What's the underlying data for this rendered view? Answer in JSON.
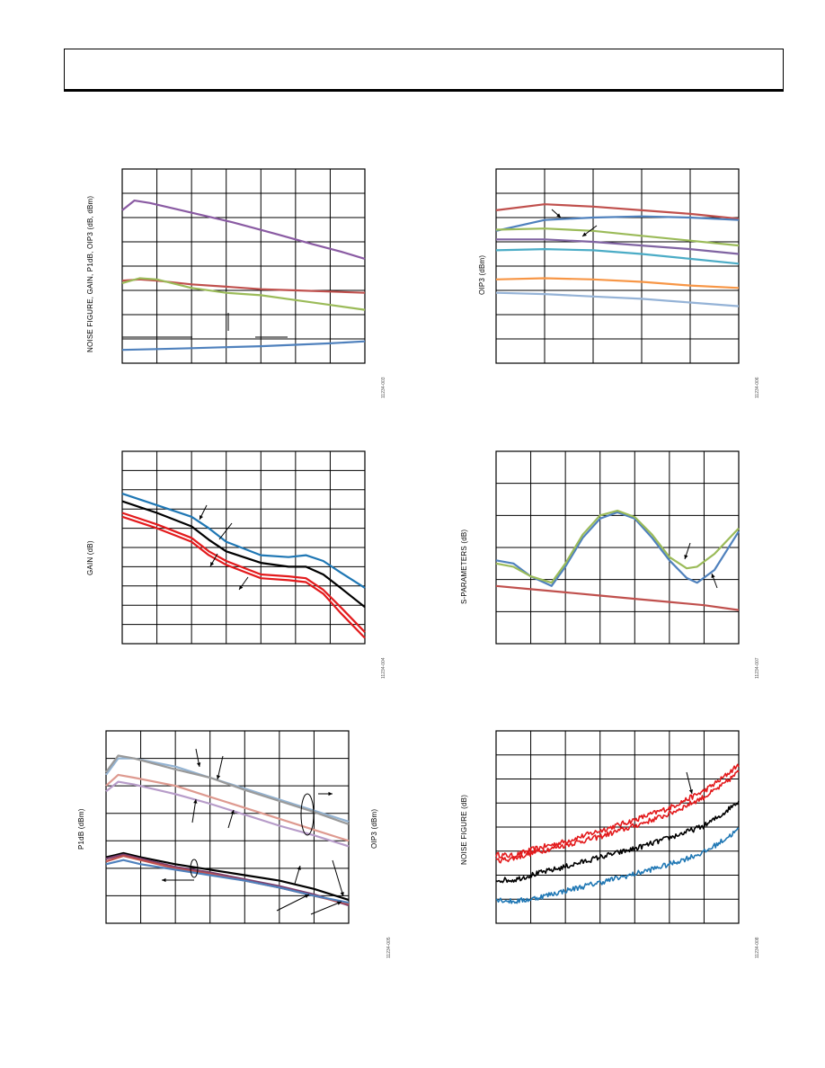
{
  "page": {
    "header_text": ""
  },
  "chart_data": [
    {
      "id": "fig3",
      "type": "line",
      "ylabel": "NOISE FIGURE, GAIN, P1dB, OIP3 (dB, dBm)",
      "figure_id": "11234-003",
      "xlim": [
        0,
        7
      ],
      "ylim": [
        0,
        8
      ],
      "grid": true,
      "series": [
        {
          "color": "#8a5ba3",
          "x": [
            0,
            0.35,
            0.8,
            2,
            3.2,
            4.5,
            5.5,
            6.3,
            7
          ],
          "y": [
            6.3,
            6.7,
            6.6,
            6.2,
            5.8,
            5.3,
            4.9,
            4.6,
            4.3
          ]
        },
        {
          "color": "#c0504d",
          "x": [
            0,
            0.5,
            1,
            2,
            3,
            4,
            5,
            6,
            7
          ],
          "y": [
            3.4,
            3.45,
            3.4,
            3.25,
            3.15,
            3.05,
            3.0,
            2.95,
            2.9
          ]
        },
        {
          "color": "#9bbb59",
          "x": [
            0,
            0.5,
            1,
            2,
            3,
            4,
            5,
            6,
            7
          ],
          "y": [
            3.3,
            3.5,
            3.45,
            3.1,
            2.9,
            2.8,
            2.6,
            2.4,
            2.2
          ]
        },
        {
          "color": "#4f81bd",
          "x": [
            0,
            1,
            2,
            3,
            4,
            5,
            6,
            7
          ],
          "y": [
            0.55,
            0.58,
            0.62,
            0.66,
            0.7,
            0.76,
            0.82,
            0.9
          ]
        }
      ]
    },
    {
      "id": "fig6",
      "type": "line",
      "ylabel": "OIP3 (dBm)",
      "figure_id": "11234-006",
      "xlim": [
        0,
        5
      ],
      "ylim": [
        0,
        8
      ],
      "grid": true,
      "series": [
        {
          "color": "#c0504d",
          "x": [
            0,
            1,
            2,
            3,
            4,
            5
          ],
          "y": [
            6.3,
            6.55,
            6.45,
            6.3,
            6.15,
            5.95
          ]
        },
        {
          "color": "#4f81bd",
          "x": [
            0,
            1,
            2,
            3,
            4,
            5
          ],
          "y": [
            5.45,
            5.9,
            6.0,
            6.05,
            6.0,
            5.9
          ]
        },
        {
          "color": "#9bbb59",
          "x": [
            0,
            1,
            2,
            3,
            4,
            5
          ],
          "y": [
            5.5,
            5.55,
            5.45,
            5.25,
            5.05,
            4.85
          ]
        },
        {
          "color": "#8064a2",
          "x": [
            0,
            1,
            2,
            3,
            4,
            5
          ],
          "y": [
            5.1,
            5.1,
            5.0,
            4.85,
            4.7,
            4.5
          ]
        },
        {
          "color": "#4bacc6",
          "x": [
            0,
            1,
            2,
            3,
            4,
            5
          ],
          "y": [
            4.65,
            4.7,
            4.65,
            4.5,
            4.3,
            4.1
          ]
        },
        {
          "color": "#f79646",
          "x": [
            0,
            1,
            2,
            3,
            4,
            5
          ],
          "y": [
            3.45,
            3.5,
            3.45,
            3.35,
            3.2,
            3.1
          ]
        },
        {
          "color": "#95b3d7",
          "x": [
            0,
            1,
            2,
            3,
            4,
            5
          ],
          "y": [
            2.9,
            2.85,
            2.75,
            2.65,
            2.5,
            2.35
          ]
        }
      ]
    },
    {
      "id": "fig4",
      "type": "line",
      "ylabel": "GAIN (dB)",
      "figure_id": "11234-004",
      "xlim": [
        0,
        7
      ],
      "ylim": [
        0,
        10
      ],
      "grid": true,
      "series": [
        {
          "color": "#1f77b4",
          "x": [
            0,
            1,
            2,
            2.5,
            3,
            4,
            4.8,
            5.3,
            5.8,
            6.3,
            7
          ],
          "y": [
            7.8,
            7.2,
            6.6,
            6.0,
            5.3,
            4.6,
            4.5,
            4.6,
            4.3,
            3.7,
            2.9
          ]
        },
        {
          "color": "#000000",
          "x": [
            0,
            1,
            2,
            2.5,
            3,
            4,
            4.8,
            5.3,
            5.8,
            6.3,
            7
          ],
          "y": [
            7.4,
            6.8,
            6.1,
            5.4,
            4.8,
            4.2,
            4.0,
            4.0,
            3.6,
            2.9,
            1.9
          ]
        },
        {
          "color": "#e31a1c",
          "x": [
            0,
            1,
            2,
            2.5,
            3,
            4,
            4.8,
            5.3,
            5.8,
            6.3,
            7
          ],
          "y": [
            6.8,
            6.2,
            5.5,
            4.8,
            4.3,
            3.6,
            3.5,
            3.4,
            2.8,
            1.9,
            0.6
          ]
        },
        {
          "color": "#e31a1c",
          "x": [
            0,
            1,
            2,
            2.5,
            3,
            4,
            4.8,
            5.3,
            5.8,
            6.3,
            7
          ],
          "y": [
            6.6,
            6.0,
            5.3,
            4.6,
            4.1,
            3.4,
            3.3,
            3.2,
            2.6,
            1.6,
            0.3
          ]
        }
      ]
    },
    {
      "id": "fig7",
      "type": "line",
      "ylabel": "S-PARAMETERS (dB)",
      "figure_id": "11234-007",
      "xlim": [
        0,
        7
      ],
      "ylim": [
        0,
        6
      ],
      "grid": true,
      "series": [
        {
          "color": "#4f81bd",
          "x": [
            0,
            0.5,
            1.0,
            1.6,
            2.0,
            2.5,
            3.0,
            3.5,
            4.0,
            4.5,
            5.0,
            5.5,
            5.8,
            6.3,
            7
          ],
          "y": [
            2.6,
            2.5,
            2.1,
            1.8,
            2.4,
            3.3,
            3.9,
            4.1,
            3.9,
            3.3,
            2.6,
            2.05,
            1.9,
            2.3,
            3.5
          ]
        },
        {
          "color": "#9bbb59",
          "x": [
            0,
            0.5,
            1.0,
            1.6,
            2.0,
            2.5,
            3.0,
            3.5,
            4.0,
            4.5,
            5.0,
            5.5,
            5.8,
            6.3,
            7
          ],
          "y": [
            2.5,
            2.4,
            2.1,
            1.9,
            2.5,
            3.4,
            4.0,
            4.15,
            3.95,
            3.4,
            2.7,
            2.35,
            2.4,
            2.8,
            3.6
          ]
        },
        {
          "color": "#c0504d",
          "x": [
            0,
            1,
            2,
            3,
            4,
            5,
            6,
            7
          ],
          "y": [
            1.8,
            1.7,
            1.6,
            1.5,
            1.4,
            1.3,
            1.2,
            1.05
          ]
        }
      ]
    },
    {
      "id": "fig5",
      "type": "line",
      "ylabel_left": "P1dB (dBm)",
      "ylabel_right": "OIP3 (dBm)",
      "figure_id": "11234-005",
      "xlim": [
        0,
        7
      ],
      "ylim": [
        0,
        7
      ],
      "grid": true,
      "series": [
        {
          "color": "#93b3d2",
          "x": [
            0,
            0.35,
            0.8,
            2,
            3,
            4,
            5,
            6,
            7
          ],
          "y": [
            5.4,
            6.0,
            6.0,
            5.7,
            5.3,
            4.9,
            4.5,
            4.1,
            3.7
          ]
        },
        {
          "color": "#9a9a9a",
          "x": [
            0,
            0.35,
            0.8,
            2,
            3,
            4,
            5,
            6,
            7
          ],
          "y": [
            5.5,
            6.1,
            6.0,
            5.6,
            5.3,
            4.85,
            4.45,
            4.05,
            3.6
          ]
        },
        {
          "color": "#de9a90",
          "x": [
            0,
            0.35,
            0.8,
            2,
            3,
            4,
            5,
            6,
            7
          ],
          "y": [
            5.0,
            5.4,
            5.3,
            5.0,
            4.6,
            4.2,
            3.8,
            3.4,
            3.0
          ]
        },
        {
          "color": "#b79cc9",
          "x": [
            0,
            0.35,
            0.8,
            2,
            3,
            4,
            5,
            6,
            7
          ],
          "y": [
            4.8,
            5.15,
            5.05,
            4.7,
            4.35,
            3.95,
            3.55,
            3.2,
            2.8
          ]
        },
        {
          "color": "#000000",
          "x": [
            0,
            0.5,
            1,
            2,
            3,
            4,
            5,
            6,
            7
          ],
          "y": [
            2.4,
            2.55,
            2.4,
            2.15,
            1.95,
            1.75,
            1.55,
            1.25,
            0.85
          ]
        },
        {
          "color": "#7b3f6e",
          "x": [
            0,
            0.5,
            1,
            2,
            3,
            4,
            5,
            6,
            7
          ],
          "y": [
            2.35,
            2.5,
            2.35,
            2.05,
            1.85,
            1.6,
            1.35,
            1.05,
            0.65
          ]
        },
        {
          "color": "#c0504d",
          "x": [
            0,
            0.5,
            1,
            2,
            3,
            4,
            5,
            6,
            7
          ],
          "y": [
            2.25,
            2.45,
            2.3,
            2.0,
            1.8,
            1.55,
            1.3,
            1.0,
            0.7
          ]
        },
        {
          "color": "#4f81bd",
          "x": [
            0,
            0.5,
            1,
            2,
            3,
            4,
            5,
            6,
            7
          ],
          "y": [
            2.15,
            2.3,
            2.15,
            1.95,
            1.75,
            1.55,
            1.3,
            1.0,
            0.75
          ]
        }
      ]
    },
    {
      "id": "fig8",
      "type": "line",
      "ylabel": "NOISE FIGURE (dB)",
      "figure_id": "11234-008",
      "xlim": [
        0,
        7
      ],
      "ylim": [
        0,
        8
      ],
      "grid": true,
      "noisy": true,
      "series": [
        {
          "color": "#e31a1c",
          "x": [
            0,
            0.5,
            1,
            2,
            3,
            4,
            5,
            6,
            6.5,
            7
          ],
          "y": [
            2.85,
            2.8,
            3.05,
            3.4,
            3.85,
            4.3,
            4.8,
            5.5,
            6.0,
            6.6
          ]
        },
        {
          "color": "#e31a1c",
          "x": [
            0,
            0.5,
            1,
            2,
            3,
            4,
            5,
            6,
            6.5,
            7
          ],
          "y": [
            2.6,
            2.7,
            2.9,
            3.25,
            3.6,
            4.05,
            4.55,
            5.25,
            5.7,
            6.3
          ]
        },
        {
          "color": "#000000",
          "x": [
            0,
            0.5,
            1,
            2,
            3,
            4,
            5,
            6,
            6.5,
            7
          ],
          "y": [
            1.8,
            1.8,
            2.0,
            2.35,
            2.75,
            3.1,
            3.55,
            4.05,
            4.5,
            5.1
          ]
        },
        {
          "color": "#1f77b4",
          "x": [
            0,
            0.5,
            1,
            2,
            3,
            4,
            5,
            6,
            6.5,
            7
          ],
          "y": [
            1.0,
            0.9,
            1.0,
            1.35,
            1.7,
            2.05,
            2.45,
            2.95,
            3.4,
            3.9
          ]
        }
      ]
    }
  ]
}
